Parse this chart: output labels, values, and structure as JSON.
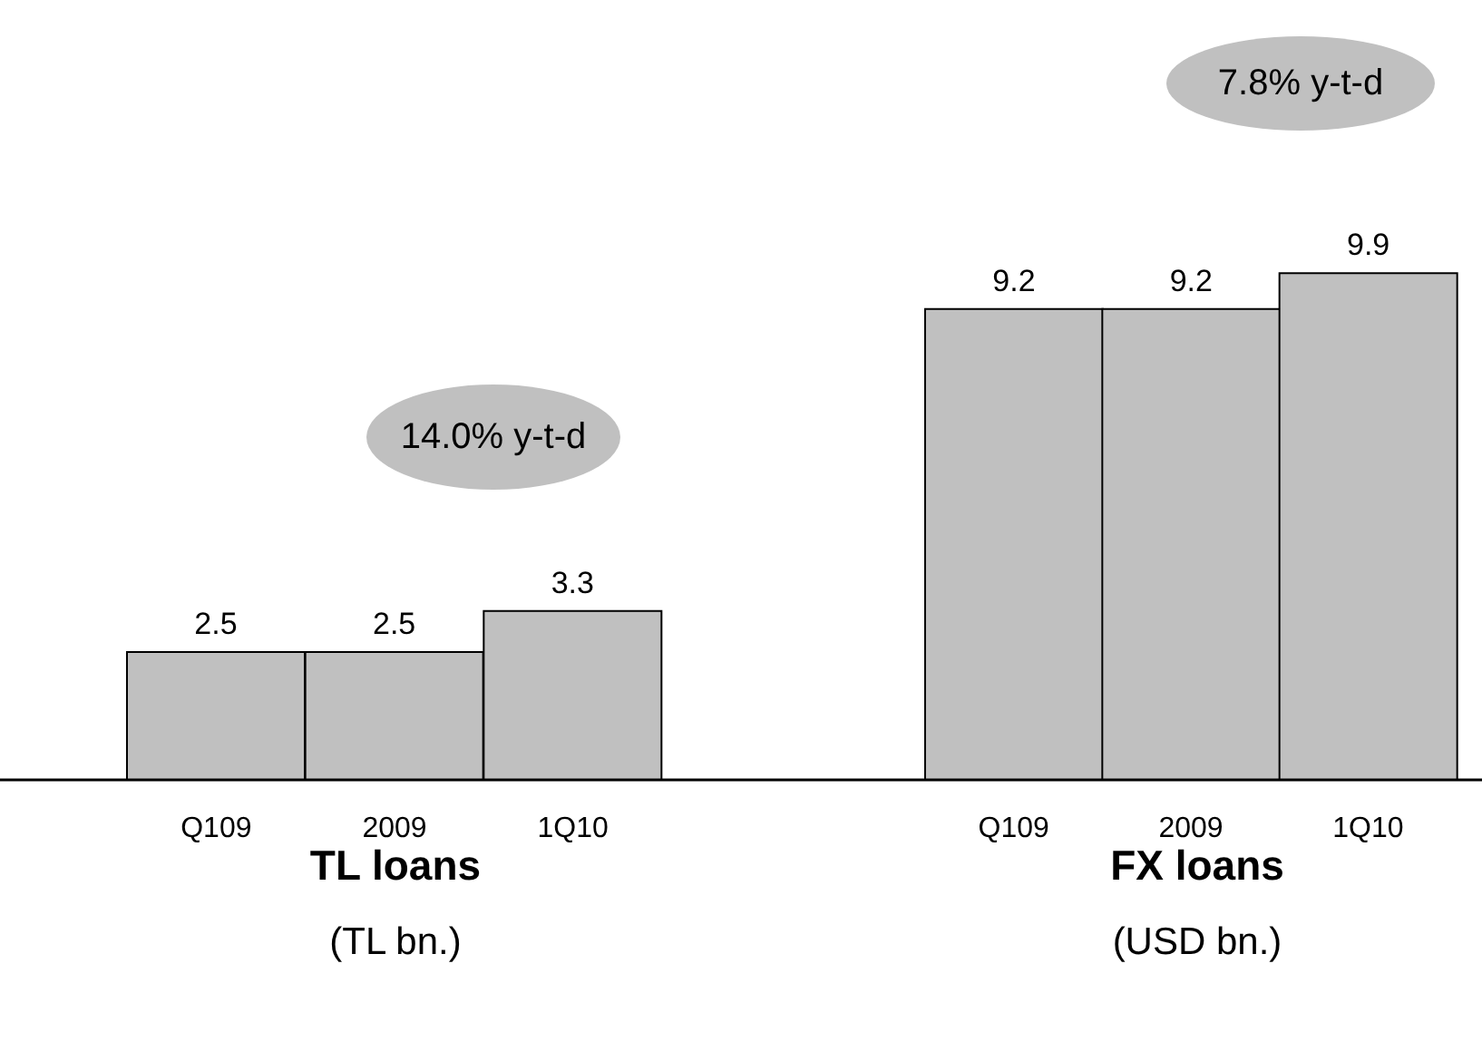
{
  "chart_data": [
    {
      "type": "bar",
      "title": "TL loans",
      "subtitle": "(TL bn.)",
      "categories": [
        "Q109",
        "2009",
        "1Q10"
      ],
      "values": [
        2.5,
        2.5,
        3.3
      ],
      "color": "#c0c0c0",
      "data_labels": true,
      "annotations": [
        "14.0% y-t-d"
      ]
    },
    {
      "type": "bar",
      "title": "FX loans",
      "subtitle": "(USD bn.)",
      "categories": [
        "Q109",
        "2009",
        "1Q10"
      ],
      "values": [
        9.2,
        9.2,
        9.9
      ],
      "color": "#c0c0c0",
      "data_labels": true,
      "annotations": [
        "7.8% y-t-d"
      ]
    }
  ]
}
